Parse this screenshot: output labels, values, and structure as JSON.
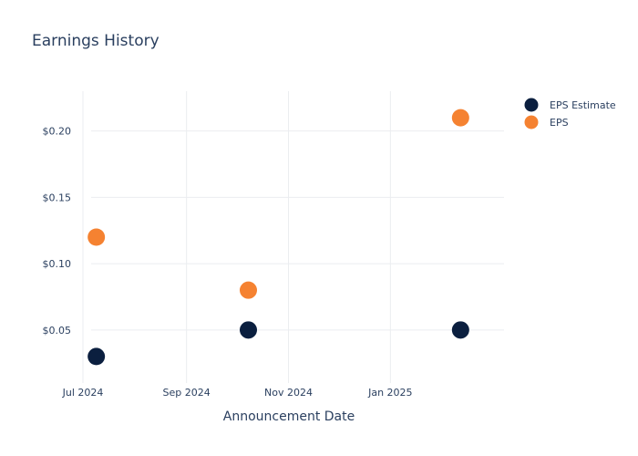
{
  "chart_data": {
    "type": "scatter",
    "title": "Earnings History",
    "xlabel": "Announcement Date",
    "ylabel": "",
    "x_ticks": [
      "Jul 2024",
      "Sep 2024",
      "Nov 2024",
      "Jan 2025"
    ],
    "y_ticks": [
      "$0.05",
      "$0.10",
      "$0.15",
      "$0.20"
    ],
    "xlim": [
      "2024-06-25",
      "2025-03-10"
    ],
    "ylim": [
      0.01,
      0.23
    ],
    "grid": true,
    "legend_placement": "top-right",
    "series": [
      {
        "name": "EPS Estimate",
        "color": "#0b1f3f",
        "points": [
          {
            "x": "2024-07-09",
            "y": 0.03
          },
          {
            "x": "2024-10-08",
            "y": 0.05
          },
          {
            "x": "2025-02-12",
            "y": 0.05
          }
        ]
      },
      {
        "name": "EPS",
        "color": "#f58231",
        "points": [
          {
            "x": "2024-07-09",
            "y": 0.12
          },
          {
            "x": "2024-10-08",
            "y": 0.08
          },
          {
            "x": "2025-02-12",
            "y": 0.21
          }
        ]
      }
    ]
  }
}
